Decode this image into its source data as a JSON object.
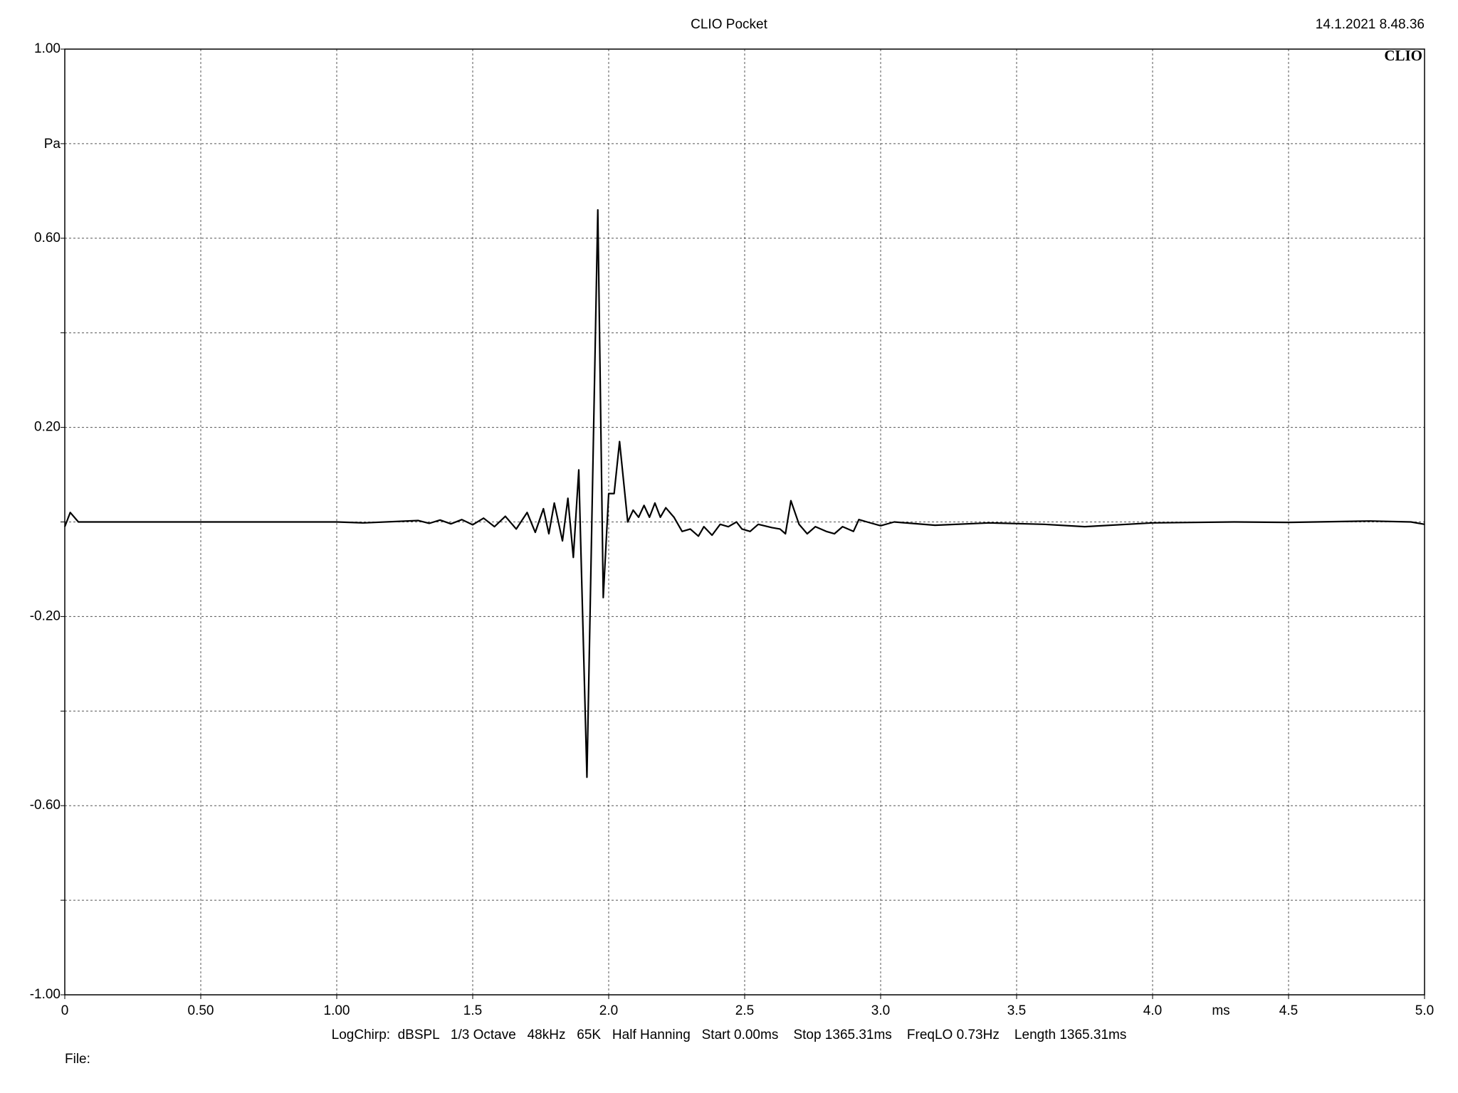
{
  "chart_data": {
    "type": "line",
    "title": "CLIO Pocket",
    "date": "14.1.2021 8.48.36",
    "logo": "CLIO",
    "ylabel": "Pa",
    "xlabel": "ms",
    "footer": "LogChirp:  dBSPL   1/3 Octave   48kHz   65K   Half Hanning   Start 0.00ms    Stop 1365.31ms    FreqLO 0.73Hz    Length 1365.31ms",
    "file_label": "File:",
    "xlim": [
      0,
      5
    ],
    "ylim": [
      -1,
      1
    ],
    "xticks": [
      0,
      {
        "value": 0.5,
        "label": "0.50"
      },
      {
        "value": 1,
        "label": "1.00"
      },
      1.5,
      {
        "value": 2,
        "label": "2.0"
      },
      2.5,
      {
        "value": 3,
        "label": "3.0"
      },
      3.5,
      {
        "value": 4,
        "label": "4.0"
      },
      4.5,
      {
        "value": 5,
        "label": "5.0"
      }
    ],
    "yticks": [
      {
        "value": -1,
        "label": "-1.00"
      },
      {
        "value": -0.8,
        "label": null
      },
      {
        "value": -0.6,
        "label": "-0.60"
      },
      {
        "value": -0.4,
        "label": null
      },
      {
        "value": -0.2,
        "label": "-0.20"
      },
      {
        "value": 0,
        "label": null
      },
      {
        "value": 0.2,
        "label": "0.20"
      },
      {
        "value": 0.4,
        "label": null
      },
      {
        "value": 0.6,
        "label": "0.60"
      },
      {
        "value": 0.8,
        "label": null
      },
      {
        "value": 1,
        "label": "1.00"
      }
    ],
    "grid": true,
    "series": [
      {
        "color": "#000000",
        "x": [
          0,
          0.02,
          0.05,
          0.1,
          0.25,
          1.0,
          1.1,
          1.3,
          1.34,
          1.38,
          1.42,
          1.46,
          1.5,
          1.54,
          1.58,
          1.62,
          1.66,
          1.7,
          1.73,
          1.76,
          1.78,
          1.8,
          1.83,
          1.85,
          1.87,
          1.89,
          1.92,
          1.96,
          1.98,
          2.0,
          2.02,
          2.04,
          2.07,
          2.09,
          2.11,
          2.13,
          2.15,
          2.17,
          2.19,
          2.21,
          2.24,
          2.27,
          2.3,
          2.33,
          2.35,
          2.38,
          2.41,
          2.44,
          2.47,
          2.49,
          2.52,
          2.55,
          2.6,
          2.63,
          2.65,
          2.67,
          2.7,
          2.73,
          2.76,
          2.8,
          2.83,
          2.86,
          2.9,
          2.92,
          2.95,
          3.0,
          3.05,
          3.2,
          3.4,
          3.6,
          3.75,
          4.0,
          4.3,
          4.5,
          4.6,
          4.8,
          4.95,
          5.0
        ],
        "values": [
          -0.01,
          0.02,
          0.0,
          0.0,
          0.0,
          0.0,
          -0.002,
          0.003,
          -0.003,
          0.004,
          -0.004,
          0.005,
          -0.006,
          0.008,
          -0.01,
          0.012,
          -0.015,
          0.02,
          -0.022,
          0.028,
          -0.025,
          0.04,
          -0.04,
          0.05,
          -0.075,
          0.11,
          -0.54,
          0.66,
          -0.16,
          0.06,
          0.06,
          0.17,
          0.0,
          0.025,
          0.01,
          0.035,
          0.01,
          0.04,
          0.01,
          0.03,
          0.01,
          -0.02,
          -0.015,
          -0.03,
          -0.01,
          -0.028,
          -0.005,
          -0.01,
          0.0,
          -0.015,
          -0.02,
          -0.005,
          -0.012,
          -0.015,
          -0.025,
          0.045,
          -0.005,
          -0.025,
          -0.01,
          -0.02,
          -0.025,
          -0.01,
          -0.02,
          0.005,
          0.0,
          -0.008,
          0.0,
          -0.007,
          -0.002,
          -0.005,
          -0.01,
          -0.002,
          0.0,
          -0.001,
          0.0,
          0.002,
          0.0,
          -0.005
        ]
      }
    ]
  }
}
